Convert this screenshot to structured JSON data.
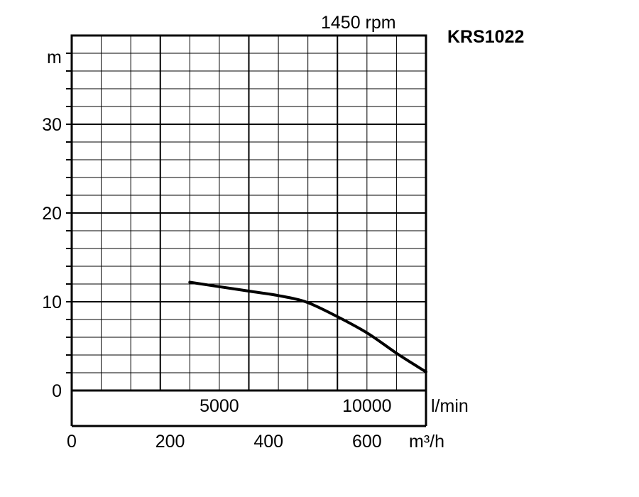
{
  "chart_data": {
    "type": "line",
    "title": "KRS1022",
    "subtitle": "1450 rpm",
    "ylabel": "m",
    "xlabel_primary": "l/min",
    "xlabel_secondary": "m³/h",
    "ylim": [
      0,
      40
    ],
    "xlim_lmin": [
      0,
      12000
    ],
    "xlim_m3h": [
      0,
      720
    ],
    "y_ticks": [
      0,
      10,
      20,
      30
    ],
    "x_ticks_lmin": [
      5000,
      10000
    ],
    "x_ticks_m3h": [
      0,
      200,
      400,
      600
    ],
    "grid": true,
    "series": [
      {
        "x_m3h": [
          240,
          300,
          360,
          420,
          475,
          530,
          600,
          660,
          720
        ],
        "values": [
          12.2,
          11.7,
          11.2,
          10.7,
          10.0,
          8.6,
          6.5,
          4.2,
          2.1
        ]
      }
    ]
  }
}
